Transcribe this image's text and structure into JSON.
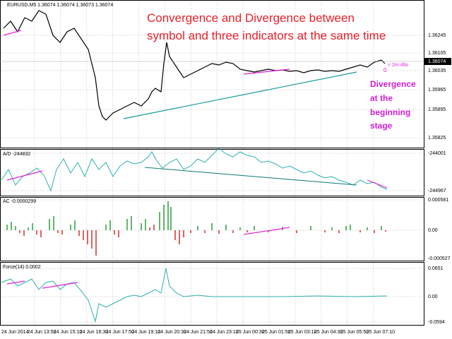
{
  "symbol_header": "EURUSD,M5  1.36074 1.36074 1.36073 1.36074",
  "annotation": {
    "line1": "Convergence and Divergence between",
    "line2": "symbol and three indicators at the same time"
  },
  "divergence_note": [
    "Divergence",
    "at the",
    "beginning",
    "stage"
  ],
  "timer": "< 2m:49s",
  "timer_zero": "0",
  "price_axis": [
    "1.36245",
    "1.36105",
    "1.36074",
    "1.36035",
    "1.35965",
    "1.35895",
    "1.35825"
  ],
  "ad_panel": {
    "header": "A/D -244832",
    "axis": [
      "-244001",
      "-244967"
    ]
  },
  "ac_panel": {
    "header": "AC -0.0000299",
    "axis": [
      "0.000581",
      "0.00",
      "-0.000527"
    ]
  },
  "force_panel": {
    "header": "Force(14) 0.0002",
    "axis": [
      "0.0651",
      "0.00",
      "-0.0594"
    ]
  },
  "time_axis": [
    "24 Jun 2014",
    "24 Jun 13:50",
    "24 Jun 15:10",
    "24 Jun 16:30",
    "24 Jun 17:50",
    "24 Jun 19:10",
    "24 Jun 20:30",
    "24 Jun 21:50",
    "24 Jun 23:10",
    "25 Jun 00:30",
    "25 Jun 01:50",
    "25 Jun 03:10",
    "25 Jun 04:30",
    "25 Jun 05:50",
    "25 Jun 07:10"
  ]
}
